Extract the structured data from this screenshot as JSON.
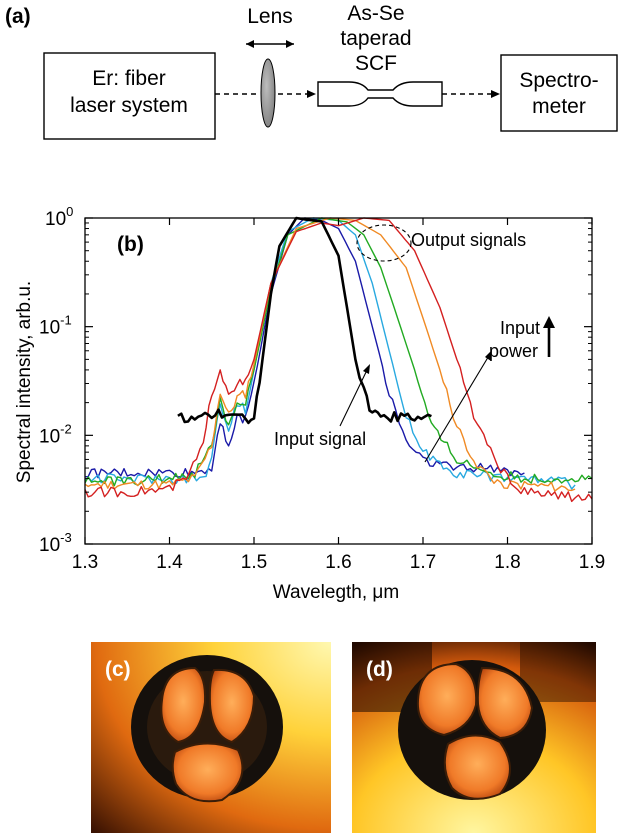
{
  "panel_a": {
    "label": "(a)",
    "laser_box": {
      "line1": "Er: fiber",
      "line2": "laser system"
    },
    "lens_label": "Lens",
    "fiber_label": {
      "line1": "As-Se",
      "line2": "taperad",
      "line3": "SCF"
    },
    "spectrometer_box": {
      "line1": "Spectro-",
      "line2": "meter"
    }
  },
  "panel_b": {
    "label": "(b)",
    "annotations": {
      "output": "Output signals",
      "input_signal": "Input signal",
      "input_power_1": "Input",
      "input_power_2": "power"
    }
  },
  "panel_c": {
    "label": "(c)"
  },
  "panel_d": {
    "label": "(d)"
  },
  "colors": {
    "input": "#000000",
    "blue": "#1a1aa8",
    "cyan": "#29a9e0",
    "green": "#22aa22",
    "orange": "#f08a24",
    "red": "#d42020"
  },
  "chart_data": {
    "type": "line",
    "xlabel": "Wavelegth, μm",
    "ylabel": "Spectral intensity, arb.u.",
    "xlim": [
      1.3,
      1.9
    ],
    "ylim": [
      0.001,
      1
    ],
    "yscale": "log",
    "xticks": [
      "1.3",
      "1.4",
      "1.5",
      "1.6",
      "1.7",
      "1.8",
      "1.9"
    ],
    "yticks": [
      {
        "base": "10",
        "exp": "0",
        "value": 1
      },
      {
        "base": "10",
        "exp": "-1",
        "value": 0.1
      },
      {
        "base": "10",
        "exp": "-2",
        "value": 0.01
      },
      {
        "base": "10",
        "exp": "-3",
        "value": 0.001
      }
    ],
    "series": [
      {
        "key": "input",
        "color": "#000000",
        "width": 2.6,
        "x": [
          1.41,
          1.43,
          1.45,
          1.47,
          1.49,
          1.5,
          1.51,
          1.52,
          1.53,
          1.55,
          1.56,
          1.58,
          1.6,
          1.61,
          1.62,
          1.63,
          1.64,
          1.65,
          1.67,
          1.69,
          1.71
        ],
        "y": [
          0.015,
          0.014,
          0.016,
          0.015,
          0.014,
          0.015,
          0.05,
          0.2,
          0.55,
          1.0,
          0.97,
          0.93,
          0.45,
          0.15,
          0.05,
          0.025,
          0.016,
          0.014,
          0.015,
          0.014,
          0.015
        ]
      },
      {
        "key": "blue",
        "color": "#1a1aa8",
        "width": 1.4,
        "x": [
          1.3,
          1.35,
          1.4,
          1.43,
          1.45,
          1.46,
          1.47,
          1.48,
          1.49,
          1.5,
          1.52,
          1.54,
          1.56,
          1.58,
          1.6,
          1.62,
          1.64,
          1.66,
          1.68,
          1.7,
          1.74,
          1.78,
          1.82
        ],
        "y": [
          0.0045,
          0.0045,
          0.0045,
          0.0045,
          0.005,
          0.014,
          0.008,
          0.014,
          0.014,
          0.03,
          0.2,
          0.7,
          1.0,
          0.95,
          0.8,
          0.4,
          0.1,
          0.025,
          0.009,
          0.006,
          0.005,
          0.005,
          0.0045
        ]
      },
      {
        "key": "cyan",
        "color": "#29a9e0",
        "width": 1.4,
        "x": [
          1.3,
          1.35,
          1.4,
          1.44,
          1.45,
          1.46,
          1.47,
          1.48,
          1.49,
          1.5,
          1.52,
          1.54,
          1.57,
          1.6,
          1.62,
          1.64,
          1.66,
          1.68,
          1.7,
          1.74,
          1.78,
          1.82,
          1.86,
          1.88
        ],
        "y": [
          0.004,
          0.004,
          0.004,
          0.004,
          0.006,
          0.02,
          0.012,
          0.02,
          0.017,
          0.04,
          0.25,
          0.75,
          1.0,
          0.95,
          0.7,
          0.25,
          0.06,
          0.015,
          0.007,
          0.0045,
          0.0042,
          0.004,
          0.0038,
          0.0035
        ]
      },
      {
        "key": "green",
        "color": "#22aa22",
        "width": 1.4,
        "x": [
          1.3,
          1.35,
          1.4,
          1.43,
          1.45,
          1.46,
          1.47,
          1.48,
          1.49,
          1.5,
          1.52,
          1.54,
          1.58,
          1.61,
          1.63,
          1.65,
          1.67,
          1.69,
          1.71,
          1.74,
          1.78,
          1.82,
          1.86,
          1.9
        ],
        "y": [
          0.0038,
          0.0038,
          0.004,
          0.0045,
          0.008,
          0.022,
          0.012,
          0.02,
          0.02,
          0.04,
          0.22,
          0.7,
          1.0,
          0.92,
          0.7,
          0.35,
          0.12,
          0.04,
          0.012,
          0.006,
          0.0045,
          0.004,
          0.004,
          0.004
        ]
      },
      {
        "key": "orange",
        "color": "#f08a24",
        "width": 1.4,
        "x": [
          1.3,
          1.35,
          1.4,
          1.43,
          1.45,
          1.46,
          1.47,
          1.48,
          1.49,
          1.5,
          1.52,
          1.55,
          1.59,
          1.62,
          1.65,
          1.68,
          1.7,
          1.72,
          1.74,
          1.76,
          1.78,
          1.8,
          1.84,
          1.88
        ],
        "y": [
          0.0035,
          0.0035,
          0.0035,
          0.004,
          0.008,
          0.025,
          0.015,
          0.022,
          0.024,
          0.045,
          0.25,
          0.8,
          1.0,
          0.95,
          0.7,
          0.35,
          0.12,
          0.04,
          0.012,
          0.006,
          0.004,
          0.0035,
          0.0034,
          0.0032
        ]
      },
      {
        "key": "red",
        "color": "#d42020",
        "width": 1.4,
        "x": [
          1.3,
          1.35,
          1.4,
          1.42,
          1.44,
          1.45,
          1.46,
          1.47,
          1.48,
          1.49,
          1.5,
          1.52,
          1.55,
          1.58,
          1.6,
          1.63,
          1.66,
          1.69,
          1.72,
          1.74,
          1.76,
          1.78,
          1.8,
          1.82,
          1.86,
          1.9
        ],
        "y": [
          0.003,
          0.003,
          0.0032,
          0.004,
          0.008,
          0.025,
          0.04,
          0.025,
          0.03,
          0.03,
          0.05,
          0.25,
          0.75,
          0.9,
          0.85,
          1.0,
          0.95,
          0.5,
          0.15,
          0.05,
          0.015,
          0.007,
          0.004,
          0.003,
          0.0028,
          0.0026
        ]
      }
    ]
  }
}
